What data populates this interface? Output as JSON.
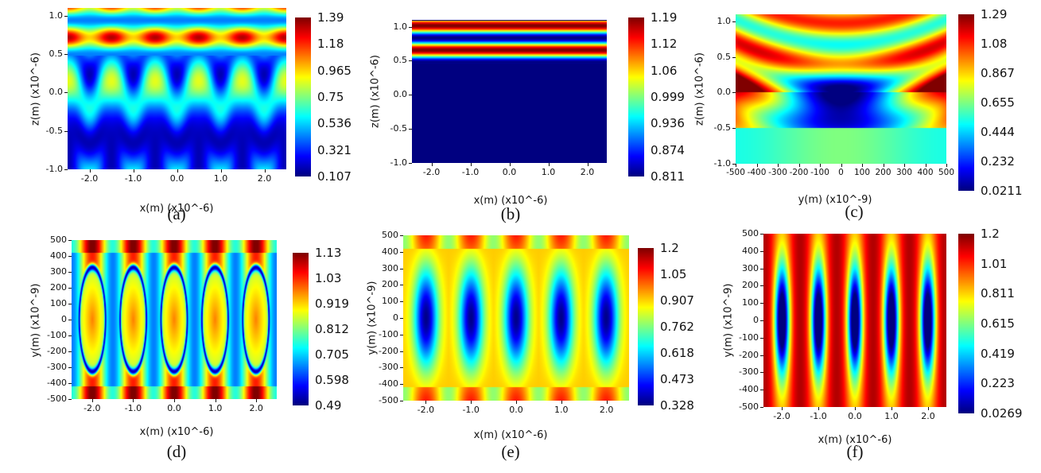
{
  "chart_data": [
    {
      "id": "a",
      "type": "heatmap",
      "panel_label": "(a)",
      "xlabel": "x(m) (x10^-6)",
      "ylabel": "z(m) (x10^-6)",
      "xlim": [
        -2.5,
        2.5
      ],
      "ylim": [
        -1.0,
        1.1
      ],
      "x_ticks": [
        "-2.0",
        "-1.0",
        "0.0",
        "1.0",
        "2.0"
      ],
      "x_tick_values": [
        -2,
        -1,
        0,
        1,
        2
      ],
      "y_ticks": [
        "1.0",
        "0.5",
        "0.0",
        "-0.5",
        "-1.0"
      ],
      "y_tick_values": [
        1.0,
        0.5,
        0.0,
        -0.5,
        -1.0
      ],
      "colorbar": {
        "min": 0.107,
        "max": 1.39,
        "ticks": [
          "1.39",
          "1.18",
          "0.965",
          "0.75",
          "0.536",
          "0.321",
          "0.107"
        ]
      },
      "pattern": "standing waves above z=0.5, periodic lobes below, period 1.0 in x"
    },
    {
      "id": "b",
      "type": "heatmap",
      "panel_label": "(b)",
      "xlabel": "x(m) (x10^-6)",
      "ylabel": "z(m) (x10^-6)",
      "xlim": [
        -2.5,
        2.5
      ],
      "ylim": [
        -1.0,
        1.1
      ],
      "x_ticks": [
        "-2.0",
        "-1.0",
        "0.0",
        "1.0",
        "2.0"
      ],
      "x_tick_values": [
        -2,
        -1,
        0,
        1,
        2
      ],
      "y_ticks": [
        "1.0",
        "0.5",
        "0.0",
        "-0.5",
        "-1.0"
      ],
      "y_tick_values": [
        1.0,
        0.5,
        0.0,
        -0.5,
        -1.0
      ],
      "colorbar": {
        "min": 0.811,
        "max": 1.19,
        "ticks": [
          "1.19",
          "1.12",
          "1.06",
          "0.999",
          "0.936",
          "0.874",
          "0.811"
        ]
      },
      "pattern": "horizontal bands above z=0.45, uniform minimum below"
    },
    {
      "id": "c",
      "type": "heatmap",
      "panel_label": "(c)",
      "xlabel": "y(m) (x10^-9)",
      "ylabel": "z(m) (x10^-6)",
      "xlim": [
        -500,
        500
      ],
      "ylim": [
        -1.0,
        1.1
      ],
      "x_ticks": [
        "-500",
        "-400",
        "-300",
        "-200",
        "-100",
        "0",
        "100",
        "200",
        "300",
        "400",
        "500"
      ],
      "x_tick_values": [
        -500,
        -400,
        -300,
        -200,
        -100,
        0,
        100,
        200,
        300,
        400,
        500
      ],
      "y_ticks": [
        "1.0",
        "0.5",
        "0.0",
        "-0.5",
        "-1.0"
      ],
      "y_tick_values": [
        1.0,
        0.5,
        0.0,
        -0.5,
        -1.0
      ],
      "colorbar": {
        "min": 0.0211,
        "max": 1.29,
        "ticks": [
          "1.29",
          "1.08",
          "0.867",
          "0.655",
          "0.444",
          "0.232",
          "0.0211"
        ]
      },
      "pattern": "curved bands above, blue minimum in center near z=-0.2"
    },
    {
      "id": "d",
      "type": "heatmap",
      "panel_label": "(d)",
      "xlabel": "x(m) (x10^-6)",
      "ylabel": "y(m) (x10^-9)",
      "xlim": [
        -2.5,
        2.5
      ],
      "ylim": [
        -500,
        500
      ],
      "x_ticks": [
        "-2.0",
        "-1.0",
        "0.0",
        "1.0",
        "2.0"
      ],
      "x_tick_values": [
        -2,
        -1,
        0,
        1,
        2
      ],
      "y_ticks": [
        "500",
        "400",
        "300",
        "200",
        "100",
        "0",
        "-100",
        "-200",
        "-300",
        "-400",
        "-500"
      ],
      "y_tick_values": [
        500,
        400,
        300,
        200,
        100,
        0,
        -100,
        -200,
        -300,
        -400,
        -500
      ],
      "colorbar": {
        "min": 0.49,
        "max": 1.13,
        "ticks": [
          "1.13",
          "1.03",
          "0.919",
          "0.812",
          "0.705",
          "0.598",
          "0.49"
        ]
      },
      "pattern": "five elliptical rings centered at x=-2,-1,0,1,2"
    },
    {
      "id": "e",
      "type": "heatmap",
      "panel_label": "(e)",
      "xlabel": "x(m) (x10^-6)",
      "ylabel": "y(m) (x10^-9)",
      "xlim": [
        -2.5,
        2.5
      ],
      "ylim": [
        -500,
        500
      ],
      "x_ticks": [
        "-2.0",
        "-1.0",
        "0.0",
        "1.0",
        "2.0"
      ],
      "x_tick_values": [
        -2,
        -1,
        0,
        1,
        2
      ],
      "y_ticks": [
        "500",
        "400",
        "300",
        "200",
        "100",
        "0",
        "-100",
        "-200",
        "-300",
        "-400",
        "-500"
      ],
      "y_tick_values": [
        500,
        400,
        300,
        200,
        100,
        0,
        -100,
        -200,
        -300,
        -400,
        -500
      ],
      "colorbar": {
        "min": 0.328,
        "max": 1.2,
        "ticks": [
          "1.2",
          "1.05",
          "0.907",
          "0.762",
          "0.618",
          "0.473",
          "0.328"
        ]
      },
      "pattern": "five elliptical minima centered at x=-2,-1,0,1,2"
    },
    {
      "id": "f",
      "type": "heatmap",
      "panel_label": "(f)",
      "xlabel": "x(m) (x10^-6)",
      "ylabel": "y(m) (x10^-9)",
      "xlim": [
        -2.5,
        2.5
      ],
      "ylim": [
        -500,
        500
      ],
      "x_ticks": [
        "-2.0",
        "-1.0",
        "0.0",
        "1.0",
        "2.0"
      ],
      "x_tick_values": [
        -2,
        -1,
        0,
        1,
        2
      ],
      "y_ticks": [
        "500",
        "400",
        "300",
        "200",
        "100",
        "0",
        "-100",
        "-200",
        "-300",
        "-400",
        "-500"
      ],
      "y_tick_values": [
        500,
        400,
        300,
        200,
        100,
        0,
        -100,
        -200,
        -300,
        -400,
        -500
      ],
      "colorbar": {
        "min": 0.0269,
        "max": 1.2,
        "ticks": [
          "1.2",
          "1.01",
          "0.811",
          "0.615",
          "0.419",
          "0.223",
          "0.0269"
        ]
      },
      "pattern": "five narrow elliptical minima centered at x=-2,-1,0,1,2"
    }
  ]
}
